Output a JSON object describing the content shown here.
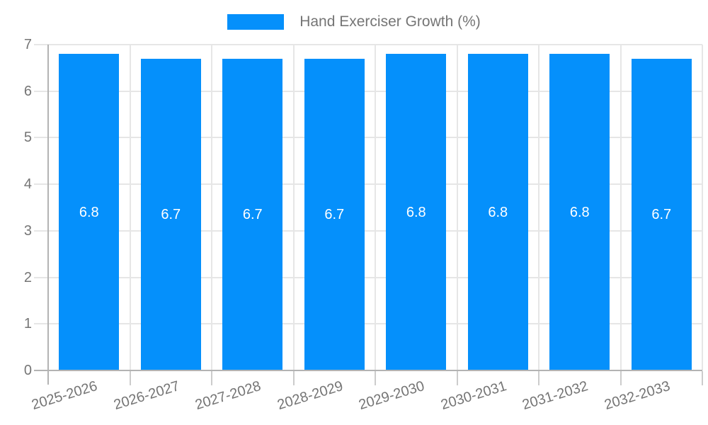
{
  "legend": {
    "series_label": "Hand Exerciser Growth (%)"
  },
  "chart_data": {
    "type": "bar",
    "title": "Hand Exerciser Growth (%)",
    "categories": [
      "2025-2026",
      "2026-2027",
      "2027-2028",
      "2028-2029",
      "2029-2030",
      "2030-2031",
      "2031-2032",
      "2032-2033"
    ],
    "series": [
      {
        "name": "Hand Exerciser Growth (%)",
        "values": [
          6.8,
          6.7,
          6.7,
          6.7,
          6.8,
          6.8,
          6.8,
          6.7
        ],
        "data_labels": [
          "6.8",
          "6.7",
          "6.7",
          "6.7",
          "6.8",
          "6.8",
          "6.8",
          "6.7"
        ]
      }
    ],
    "xlabel": "",
    "ylabel": "",
    "ylim": [
      0,
      7
    ],
    "yticks": [
      "0",
      "1",
      "2",
      "3",
      "4",
      "5",
      "6",
      "7"
    ],
    "grid": true,
    "legend_position": "top"
  },
  "colors": {
    "bar": "#0590FB",
    "gridline": "#e6e6e6",
    "axis_line": "#b3b3b3",
    "minor_tick": "#cccccc",
    "axis_text": "#757575",
    "bar_label_text": "#ffffff",
    "background": "#ffffff"
  }
}
